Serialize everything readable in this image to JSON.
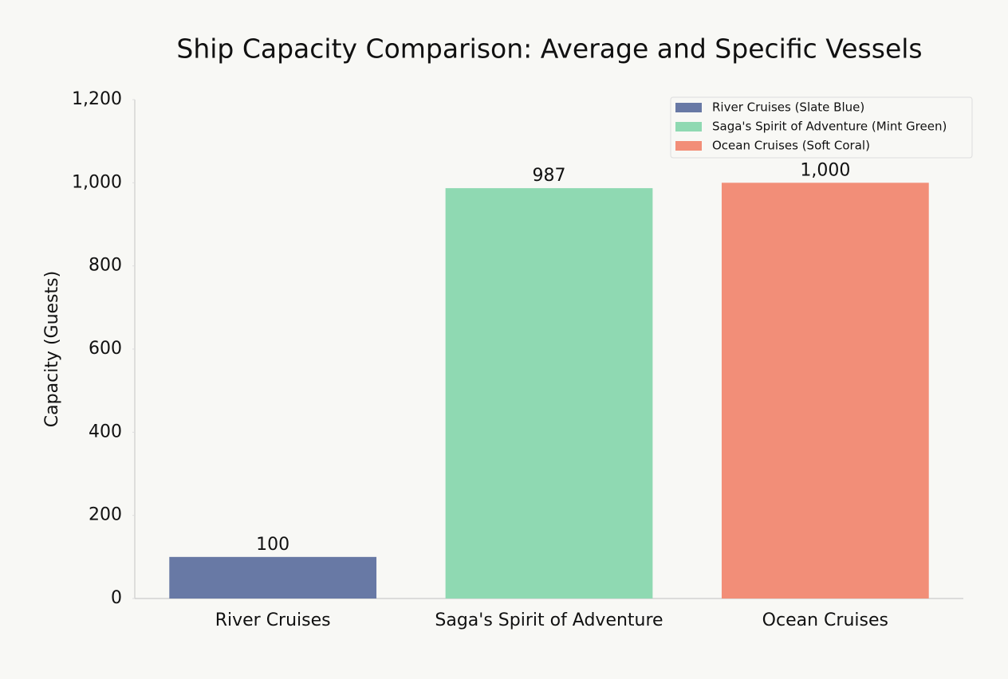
{
  "chart_data": {
    "type": "bar",
    "title": "Ship Capacity Comparison: Average and Specific Vessels",
    "y_label": "Capacity (Guests)",
    "categories": [
      "River Cruises",
      "Saga's Spirit of Adventure",
      "Ocean Cruises"
    ],
    "values": [
      100,
      987,
      1000
    ],
    "value_labels": [
      "100",
      "987",
      "1,000"
    ],
    "colors": [
      "#6879a5",
      "#8fd9b2",
      "#f28e78"
    ],
    "ylim": [
      0,
      1200
    ],
    "yticks": [
      0,
      200,
      400,
      600,
      800,
      {
        "value": 1000,
        "label": "1,000"
      },
      {
        "value": 1200,
        "label": "1,200"
      }
    ],
    "grid": false,
    "legend": {
      "loc": "upper right",
      "labels": [
        "River Cruises (Slate Blue)",
        "Saga's Spirit of Adventure (Mint Green)",
        "Ocean Cruises (Soft Coral)"
      ]
    }
  }
}
